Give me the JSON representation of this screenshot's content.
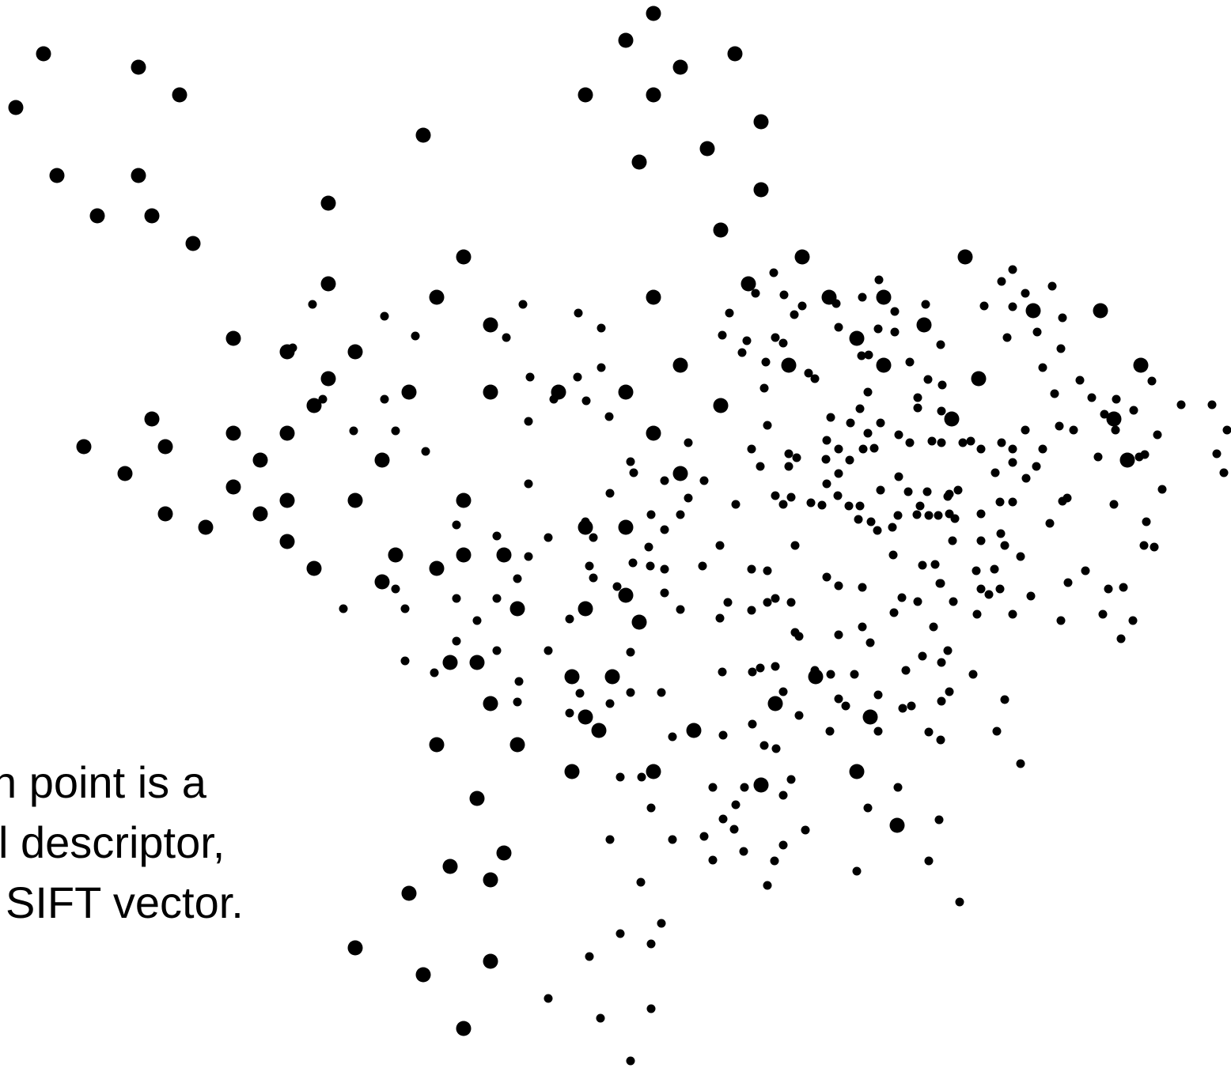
{
  "caption": {
    "lines": [
      "h point is a",
      "l descriptor,",
      "SIFT vector."
    ]
  },
  "colors": {
    "background": "#ffffff",
    "point": "#000000",
    "text": "#000000"
  }
}
